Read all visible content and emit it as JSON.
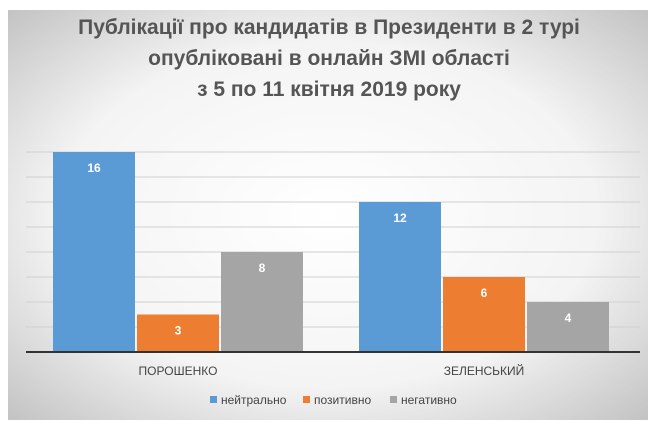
{
  "chart_data": {
    "type": "bar",
    "title": [
      "Публікації про кандидатів в Президенти в 2 турі",
      "опубліковані в онлайн ЗМІ області",
      "з 5 по 11 квітня 2019 року"
    ],
    "categories": [
      "ПОРОШЕНКО",
      "ЗЕЛЕНСЬКИЙ"
    ],
    "series": [
      {
        "name": "нейтрально",
        "values": [
          16,
          12
        ],
        "color": "#5b9bd5"
      },
      {
        "name": "позитивно",
        "values": [
          3,
          6
        ],
        "color": "#ed7d31"
      },
      {
        "name": "негативно",
        "values": [
          8,
          4
        ],
        "color": "#a5a5a5"
      }
    ],
    "ylim": [
      0,
      16
    ],
    "grid": true,
    "grid_step": 2,
    "data_labels": true,
    "legend": "bottom"
  }
}
